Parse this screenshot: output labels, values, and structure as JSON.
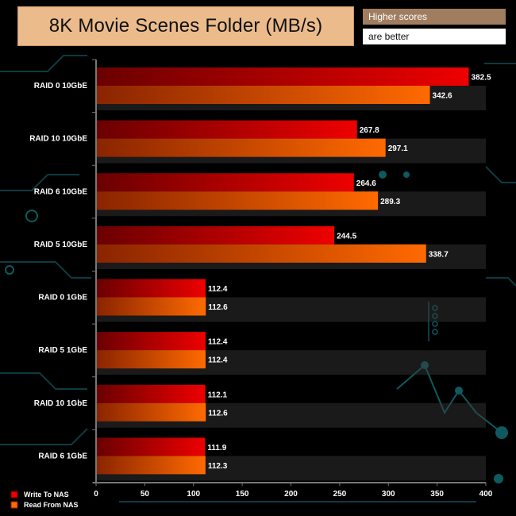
{
  "header": {
    "title": "8K Movie Scenes Folder (MB/s)",
    "note_line1": "Higher scores",
    "note_line2": "are better"
  },
  "colors": {
    "write": "#ee0000",
    "write_dark": "#6a0000",
    "read": "#ff6a00",
    "read_dark": "#8a2400",
    "title_bg": "#ebbb8b"
  },
  "chart_data": {
    "type": "bar",
    "orientation": "horizontal",
    "title": "8K Movie Scenes Folder (MB/s)",
    "categories": [
      "RAID 0 10GbE",
      "RAID 10 10GbE",
      "RAID 6 10GbE",
      "RAID 5 10GbE",
      "RAID 0 1GbE",
      "RAID 5 1GbE",
      "RAID 10 1GbE",
      "RAID 6 1GbE"
    ],
    "series": [
      {
        "name": "Write To NAS",
        "values": [
          382.5,
          267.8,
          264.6,
          244.5,
          112.4,
          112.4,
          112.1,
          111.9
        ]
      },
      {
        "name": "Read From NAS",
        "values": [
          342.6,
          297.1,
          289.3,
          338.7,
          112.6,
          112.4,
          112.6,
          112.3
        ]
      }
    ],
    "value_labels": {
      "Write To NAS": [
        "382.5",
        "267.8",
        "264.6",
        "244.5",
        "112.4",
        "112.4",
        "112.1",
        "111.9"
      ],
      "Read From NAS": [
        "342.6",
        "297.1",
        "289.3",
        "338.7",
        "112.6",
        "112.4",
        "112.6",
        "112.3"
      ]
    },
    "xlim": [
      0,
      400
    ],
    "xticks": [
      "0",
      "50",
      "100",
      "150",
      "200",
      "250",
      "300",
      "350",
      "400"
    ],
    "legend": "bottom-left",
    "grid": false
  }
}
